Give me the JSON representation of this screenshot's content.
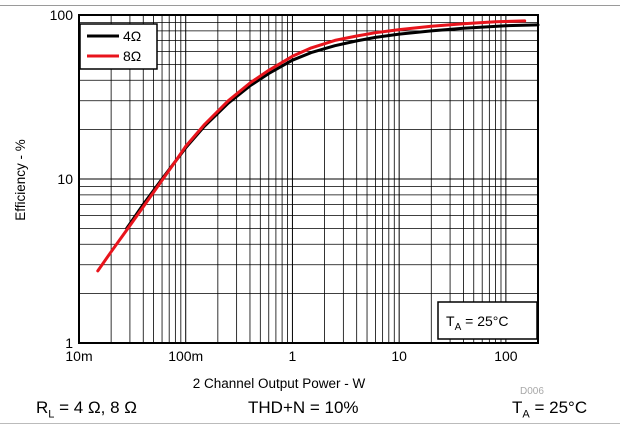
{
  "chart_data": {
    "type": "line",
    "title": "",
    "xlabel": "2 Channel Output Power - W",
    "ylabel": "Efficiency - %",
    "x_scale": "log",
    "y_scale": "log",
    "xlim": [
      0.01,
      200
    ],
    "ylim": [
      1,
      100
    ],
    "x_ticks": [
      {
        "value": 0.01,
        "label": "10m"
      },
      {
        "value": 0.1,
        "label": "100m"
      },
      {
        "value": 1,
        "label": "1"
      },
      {
        "value": 10,
        "label": "10"
      },
      {
        "value": 100,
        "label": "100"
      }
    ],
    "y_ticks": [
      {
        "value": 1,
        "label": "1"
      },
      {
        "value": 10,
        "label": "10"
      },
      {
        "value": 100,
        "label": "100"
      }
    ],
    "grid": true,
    "legend_position": "top-left",
    "series": [
      {
        "name": "4Ω",
        "color": "#000000",
        "x": [
          0.028,
          0.04,
          0.06,
          0.1,
          0.15,
          0.25,
          0.4,
          0.6,
          1.0,
          1.5,
          2.5,
          4,
          6,
          10,
          20,
          40,
          100,
          200
        ],
        "y": [
          5.0,
          7.0,
          10.0,
          15.5,
          21.0,
          29.0,
          37.0,
          44.0,
          53.0,
          59.0,
          65.0,
          69.5,
          73.0,
          76.5,
          80.0,
          83.0,
          86.0,
          87.0
        ]
      },
      {
        "name": "8Ω",
        "color": "#e8141c",
        "x": [
          0.015,
          0.02,
          0.03,
          0.05,
          0.08,
          0.1,
          0.15,
          0.25,
          0.4,
          0.6,
          1.0,
          1.5,
          2.5,
          4,
          6,
          10,
          20,
          40,
          80,
          150
        ],
        "y": [
          2.75,
          3.6,
          5.2,
          8.3,
          12.8,
          15.8,
          21.5,
          30.0,
          38.5,
          46.0,
          56.0,
          63.0,
          70.0,
          74.5,
          78.0,
          81.5,
          85.5,
          88.5,
          91.0,
          92.0
        ]
      }
    ],
    "annotations": {
      "temperature_box": {
        "main": "T",
        "sub": "A",
        "rest": " = 25°C"
      },
      "figure_id": "D006"
    }
  },
  "caption": {
    "load": {
      "main": "R",
      "sub": "L",
      "rest": " = 4 Ω, 8 Ω"
    },
    "thd": "THD+N = 10%",
    "temp": {
      "main": "T",
      "sub": "A",
      "rest": " = 25°C"
    }
  }
}
